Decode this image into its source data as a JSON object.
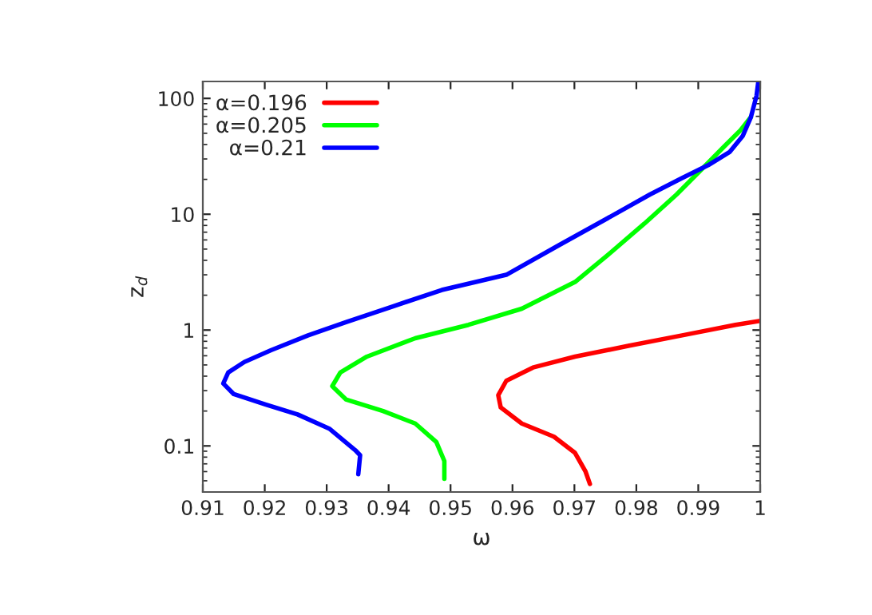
{
  "chart_data": {
    "type": "line",
    "xlabel": "ω",
    "ylabel": "z$_{d}$",
    "xlim": [
      0.91,
      1
    ],
    "xticks": [
      0.91,
      0.92,
      0.93,
      0.94,
      0.95,
      0.96,
      0.97,
      0.98,
      0.99,
      1
    ],
    "ylim": [
      0.04,
      140
    ],
    "yticks": [
      0.1,
      1,
      10,
      100
    ],
    "log": "y",
    "grid": false,
    "legend": "top left",
    "line_style": "solid",
    "marker": "none",
    "series": [
      {
        "name": "α=0.196",
        "color": "#ff0000",
        "x": [
          0.9725,
          0.9718,
          0.9701,
          0.9667,
          0.9615,
          0.9581,
          0.9577,
          0.959,
          0.9633,
          0.9701,
          0.9787,
          0.9874,
          0.996,
          1.0
        ],
        "values": [
          0.047,
          0.06,
          0.087,
          0.12,
          0.156,
          0.215,
          0.274,
          0.365,
          0.475,
          0.59,
          0.73,
          0.9,
          1.11,
          1.2
        ]
      },
      {
        "name": "α=0.205",
        "color": "#00ff00",
        "x": [
          0.949,
          0.949,
          0.9477,
          0.9443,
          0.9391,
          0.9331,
          0.9309,
          0.9322,
          0.9365,
          0.9443,
          0.9529,
          0.9615,
          0.9701,
          0.9753,
          0.9813,
          0.9865,
          0.9908,
          0.9942,
          0.9968,
          0.9985
        ],
        "values": [
          0.052,
          0.074,
          0.108,
          0.156,
          0.2,
          0.252,
          0.328,
          0.43,
          0.59,
          0.85,
          1.11,
          1.53,
          2.6,
          4.4,
          8.3,
          14.8,
          25.2,
          38.5,
          53,
          69
        ]
      },
      {
        "name": "α=0.21",
        "color": "#0000ff",
        "x": [
          0.9351,
          0.9354,
          0.9346,
          0.9305,
          0.9253,
          0.9202,
          0.915,
          0.9133,
          0.9141,
          0.9167,
          0.921,
          0.927,
          0.9331,
          0.9408,
          0.9486,
          0.959,
          0.9675,
          0.9753,
          0.9822,
          0.9873,
          0.9916,
          0.9951,
          0.9972,
          0.9985,
          0.9994,
          0.9997
        ],
        "values": [
          0.057,
          0.083,
          0.092,
          0.14,
          0.187,
          0.227,
          0.28,
          0.346,
          0.43,
          0.53,
          0.67,
          0.9,
          1.17,
          1.61,
          2.22,
          3.0,
          5.4,
          9.2,
          14.8,
          20.4,
          26.5,
          34.6,
          47.6,
          69,
          105,
          140
        ]
      }
    ]
  }
}
